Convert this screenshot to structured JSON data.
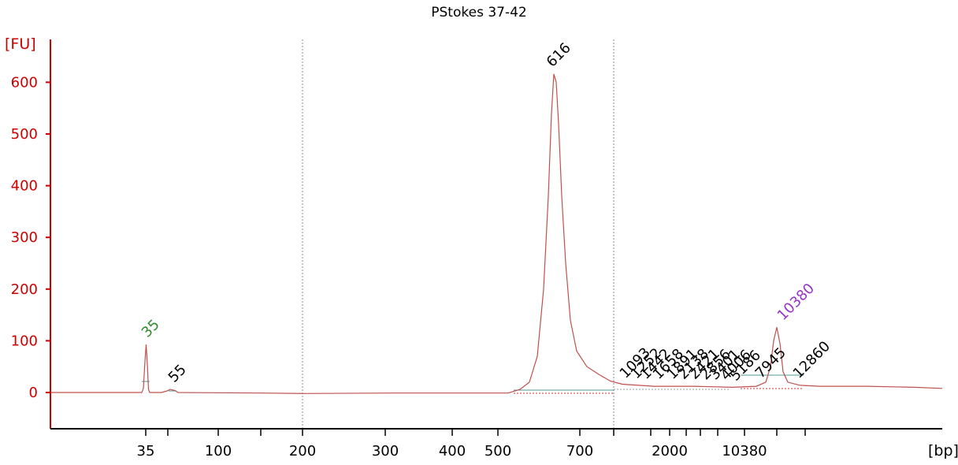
{
  "chart_data": {
    "type": "line",
    "title": "PStokes 37-42",
    "ylabel": "[FU]",
    "xlabel": "[bp]",
    "ylim": [
      -60,
      680
    ],
    "yticks": [
      0,
      100,
      200,
      300,
      400,
      500,
      600
    ],
    "xticks": [
      {
        "label": "35"
      },
      {
        "label": ""
      },
      {
        "label": "100"
      },
      {
        "label": ""
      },
      {
        "label": "200"
      },
      {
        "label": "300"
      },
      {
        "label": "400"
      },
      {
        "label": "500"
      },
      {
        "label": "700"
      },
      {
        "label": ""
      },
      {
        "label": ""
      },
      {
        "label": "2000"
      },
      {
        "label": ""
      },
      {
        "label": ""
      },
      {
        "label": ""
      },
      {
        "label": "10380"
      },
      {
        "label": ""
      },
      {
        "label": ""
      }
    ],
    "gridlines_at_bp": [
      "200",
      "1000"
    ],
    "peak_labels": [
      {
        "label": "35",
        "value": 93,
        "color": "#2e8b2e"
      },
      {
        "label": "55",
        "value": 6,
        "color": "#000000"
      },
      {
        "label": "616",
        "value": 616,
        "color": "#000000"
      },
      {
        "label": "1093",
        "value": 14,
        "color": "#000000"
      },
      {
        "label": "1252",
        "value": 13,
        "color": "#000000"
      },
      {
        "label": "1442",
        "value": 12,
        "color": "#000000"
      },
      {
        "label": "1658",
        "value": 12,
        "color": "#000000"
      },
      {
        "label": "1891",
        "value": 12,
        "color": "#000000"
      },
      {
        "label": "2138",
        "value": 12,
        "color": "#000000"
      },
      {
        "label": "2421",
        "value": 12,
        "color": "#000000"
      },
      {
        "label": "2856",
        "value": 11,
        "color": "#000000"
      },
      {
        "label": "3401",
        "value": 11,
        "color": "#000000"
      },
      {
        "label": "4006",
        "value": 10,
        "color": "#000000"
      },
      {
        "label": "5186",
        "value": 9,
        "color": "#000000"
      },
      {
        "label": "7945",
        "value": 14,
        "color": "#000000"
      },
      {
        "label": "10380",
        "value": 126,
        "color": "#9933cc"
      },
      {
        "label": "12860",
        "value": 14,
        "color": "#000000"
      }
    ],
    "trace_color": "#c0504d",
    "axis_color": "#cc0000",
    "baseline_color": "#4f9a94",
    "grid": false
  }
}
